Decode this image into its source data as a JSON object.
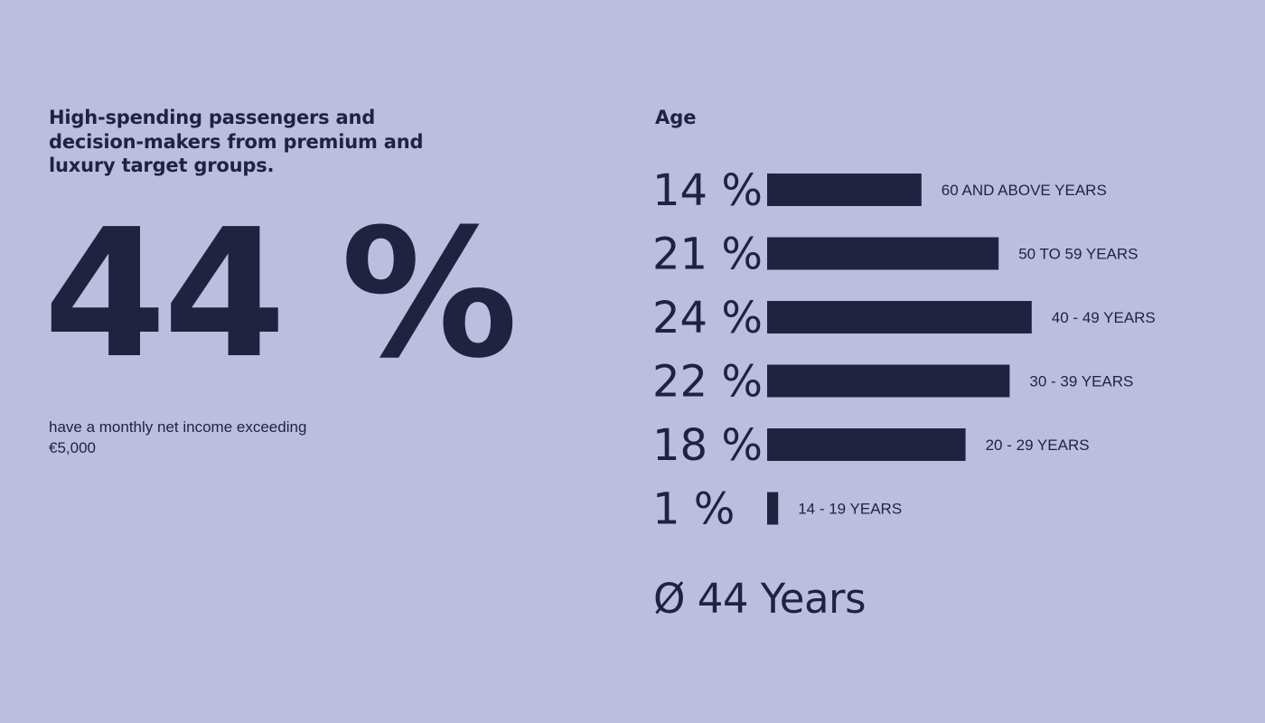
{
  "left_panel": {
    "headline": "High-spending passengers and decision-makers from premium and luxury target groups.",
    "big_stat": "44 %",
    "note": "have a monthly net income exceeding €5,000"
  },
  "colors": {
    "background": "#bdbde0",
    "ink": "#1f2340"
  },
  "chart_data": {
    "type": "bar",
    "orientation": "horizontal",
    "title": "Age",
    "unit": "%",
    "categories": [
      "60 AND ABOVE YEARS",
      "50 TO 59 YEARS",
      "40 - 49 YEARS",
      "30 - 39 YEARS",
      "20 - 29 YEARS",
      "14 - 19 YEARS"
    ],
    "values": [
      14,
      21,
      24,
      22,
      18,
      1
    ],
    "value_labels": [
      "14 %",
      "21 %",
      "24 %",
      "22 %",
      "18 %",
      "1 %"
    ],
    "grid": false,
    "axes_visible": false,
    "footer": "Ø 44 Years"
  }
}
